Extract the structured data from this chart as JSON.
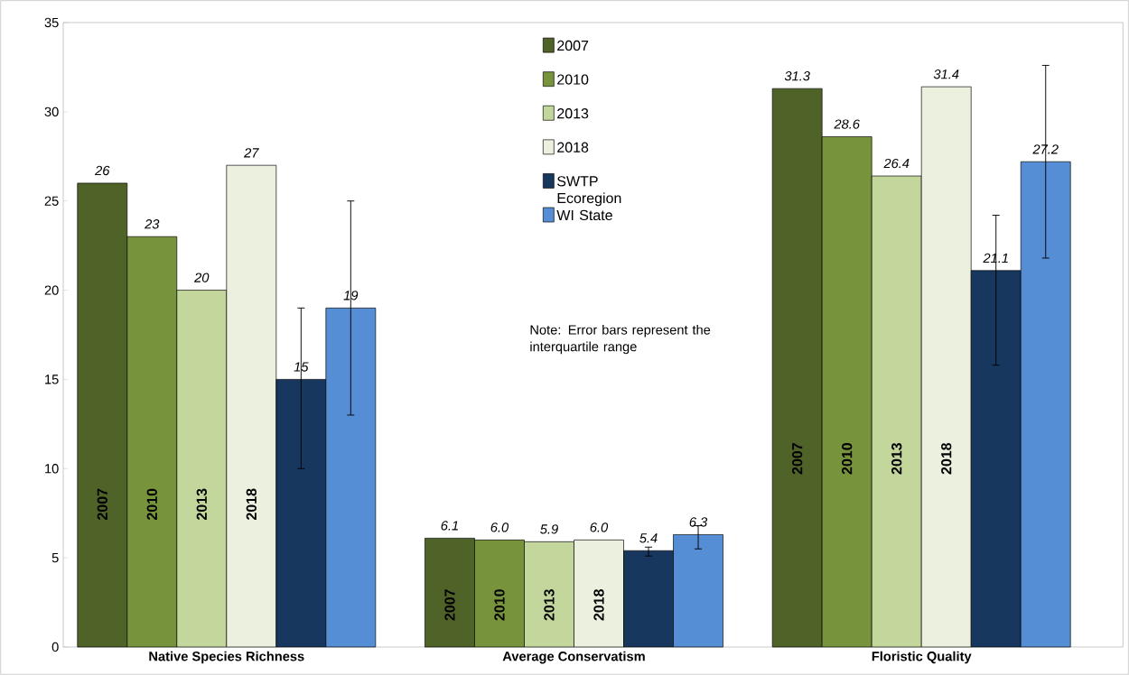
{
  "chart_data": {
    "type": "bar",
    "categories": [
      "Native Species Richness",
      "Average Conservatism",
      "Floristic Quality"
    ],
    "ylim": [
      0,
      35
    ],
    "yticks": [
      0,
      5,
      10,
      15,
      20,
      25,
      30,
      35
    ],
    "legend": "top",
    "grid": false,
    "series": [
      {
        "name": "2007",
        "color": "#4f6228",
        "values": [
          26,
          6.1,
          31.3
        ],
        "value_labels": [
          "26",
          "6.1",
          "31.3"
        ]
      },
      {
        "name": "2010",
        "color": "#77933c",
        "values": [
          23,
          6.0,
          28.6
        ],
        "value_labels": [
          "23",
          "6.0",
          "28.6"
        ]
      },
      {
        "name": "2013",
        "color": "#c3d69b",
        "values": [
          20,
          5.9,
          26.4
        ],
        "value_labels": [
          "20",
          "5.9",
          "26.4"
        ]
      },
      {
        "name": "2018",
        "color": "#ebf1de",
        "values": [
          27,
          6.0,
          31.4
        ],
        "value_labels": [
          "27",
          "6.0",
          "31.4"
        ]
      },
      {
        "name": "SWTP Ecoregion",
        "color": "#17375e",
        "values": [
          15,
          5.4,
          21.1
        ],
        "value_labels": [
          "15",
          "5.4",
          "21.1"
        ],
        "errors": [
          [
            10,
            19
          ],
          [
            5.1,
            5.6
          ],
          [
            15.8,
            24.2
          ]
        ]
      },
      {
        "name": "WI State",
        "color": "#558ed5",
        "values": [
          19,
          6.3,
          27.2
        ],
        "value_labels": [
          "19",
          "6.3",
          "27.2"
        ],
        "errors": [
          [
            13,
            25
          ],
          [
            5.5,
            6.8
          ],
          [
            21.8,
            32.6
          ]
        ]
      }
    ],
    "annotations": [
      "2007",
      "2010",
      "2013",
      "2018",
      "2007",
      "2010",
      "2013",
      "2018",
      "2007",
      "2010",
      "2013",
      "2018",
      "Note: Error bars represent the interquartile range"
    ]
  }
}
